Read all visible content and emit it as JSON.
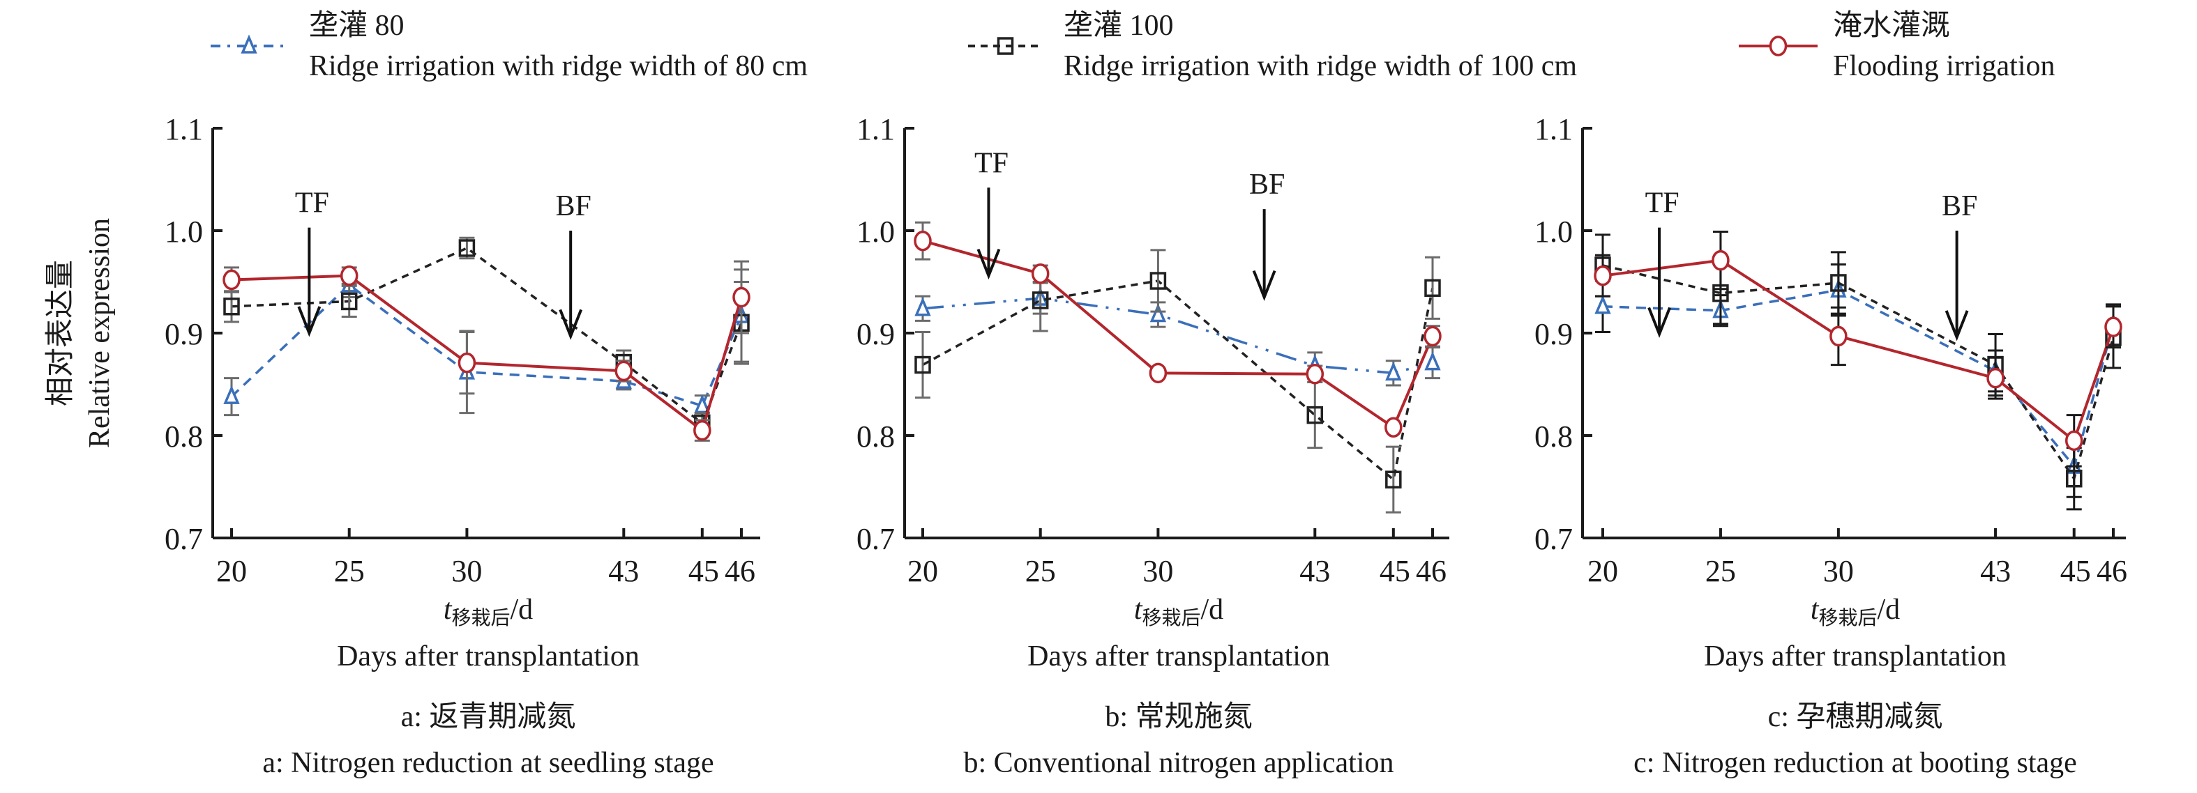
{
  "legend": [
    {
      "key": "r80",
      "cn": "垄灌 80",
      "en": "Ridge irrigation with ridge width of 80 cm"
    },
    {
      "key": "r100",
      "cn": "垄灌 100",
      "en": "Ridge irrigation with ridge width of 100 cm"
    },
    {
      "key": "flood",
      "cn": "淹水灌溉",
      "en": "Flooding irrigation"
    }
  ],
  "colors": {
    "r80": "#3a6fba",
    "r100": "#222222",
    "flood": "#b3262d",
    "axis": "#1a1a1a"
  },
  "ylabel": {
    "cn": "相对表达量",
    "en": "Relative expression"
  },
  "xlabel": {
    "var": "t",
    "sub": "移栽后",
    "unit": "/d",
    "en": "Days after transplantation"
  },
  "chart_data": [
    {
      "type": "line",
      "panel": "a",
      "title_cn": "a: 返青期减氮",
      "title_en": "a: Nitrogen reduction at seedling stage",
      "x": [
        20,
        25,
        30,
        43,
        45,
        46
      ],
      "x_tick_labels": [
        "20",
        "25",
        "30",
        "43",
        "45",
        "46"
      ],
      "ylim": [
        0.7,
        1.1
      ],
      "y_ticks": [
        "0.7",
        "0.8",
        "0.9",
        "1.0",
        "1.1"
      ],
      "errorbar_color": "#6b6b6b",
      "series": [
        {
          "key": "r80",
          "values": [
            0.838,
            0.947,
            0.862,
            0.853,
            0.829,
            0.917
          ],
          "err": [
            0.018,
            0.012,
            0.04,
            0.008,
            0.01,
            0.045
          ]
        },
        {
          "key": "r100",
          "values": [
            0.926,
            0.931,
            0.983,
            0.871,
            0.812,
            0.91
          ],
          "err": [
            0.015,
            0.015,
            0.01,
            0.012,
            0.01,
            0.04
          ]
        },
        {
          "key": "flood",
          "values": [
            0.952,
            0.956,
            0.871,
            0.863,
            0.805,
            0.935
          ],
          "err": [
            0.012,
            0.008,
            0.03,
            0.01,
            0.01,
            0.035
          ]
        }
      ],
      "annotations": [
        {
          "label": "TF",
          "x": 23.3,
          "y_top": 1.003,
          "y_tip": 0.9
        },
        {
          "label": "BF",
          "x": 38.6,
          "y_top": 1.0,
          "y_tip": 0.897
        }
      ]
    },
    {
      "type": "line",
      "panel": "b",
      "title_cn": "b: 常规施氮",
      "title_en": "b: Conventional nitrogen application",
      "x": [
        20,
        25,
        30,
        43,
        45,
        46
      ],
      "x_tick_labels": [
        "20",
        "25",
        "30",
        "43",
        "45",
        "46"
      ],
      "ylim": [
        0.7,
        1.1
      ],
      "y_ticks": [
        "0.7",
        "0.8",
        "0.9",
        "1.0",
        "1.1"
      ],
      "errorbar_color": "#6b6b6b",
      "series": [
        {
          "key": "r80",
          "values": [
            0.924,
            0.934,
            0.918,
            0.868,
            0.861,
            0.871
          ],
          "err": [
            0.012,
            0.015,
            0.012,
            0.013,
            0.012,
            0.015
          ]
        },
        {
          "key": "r100",
          "values": [
            0.869,
            0.932,
            0.951,
            0.82,
            0.757,
            0.944
          ],
          "err": [
            0.032,
            0.03,
            0.03,
            0.032,
            0.032,
            0.03
          ]
        },
        {
          "key": "flood",
          "values": [
            0.99,
            0.958,
            0.861,
            0.86,
            0.808,
            0.897
          ],
          "err": [
            0.018,
            0.008,
            0.0,
            0.008,
            0.0,
            0.01
          ]
        }
      ],
      "annotations": [
        {
          "label": "TF",
          "x": 22.8,
          "y_top": 1.042,
          "y_tip": 0.956
        },
        {
          "label": "BF",
          "x": 38.8,
          "y_top": 1.021,
          "y_tip": 0.935
        }
      ]
    },
    {
      "type": "line",
      "panel": "c",
      "title_cn": "c: 孕穗期减氮",
      "title_en": "c: Nitrogen reduction at booting stage",
      "x": [
        20,
        25,
        30,
        43,
        45,
        46
      ],
      "x_tick_labels": [
        "20",
        "25",
        "30",
        "43",
        "45",
        "46"
      ],
      "ylim": [
        0.7,
        1.1
      ],
      "y_ticks": [
        "0.7",
        "0.8",
        "0.9",
        "1.0",
        "1.1"
      ],
      "errorbar_color": "#1a1a1a",
      "series": [
        {
          "key": "r80",
          "values": [
            0.926,
            0.922,
            0.942,
            0.863,
            0.77,
            0.908
          ],
          "err": [
            0.025,
            0.015,
            0.025,
            0.02,
            0.03,
            0.02
          ]
        },
        {
          "key": "r100",
          "values": [
            0.966,
            0.939,
            0.949,
            0.869,
            0.758,
            0.896
          ],
          "err": [
            0.03,
            0.03,
            0.03,
            0.03,
            0.03,
            0.03
          ]
        },
        {
          "key": "flood",
          "values": [
            0.956,
            0.971,
            0.897,
            0.856,
            0.795,
            0.906
          ],
          "err": [
            0.02,
            0.028,
            0.028,
            0.02,
            0.025,
            0.02
          ]
        }
      ],
      "annotations": [
        {
          "label": "TF",
          "x": 22.4,
          "y_top": 1.003,
          "y_tip": 0.899
        },
        {
          "label": "BF",
          "x": 39.8,
          "y_top": 1.0,
          "y_tip": 0.896
        }
      ]
    }
  ]
}
